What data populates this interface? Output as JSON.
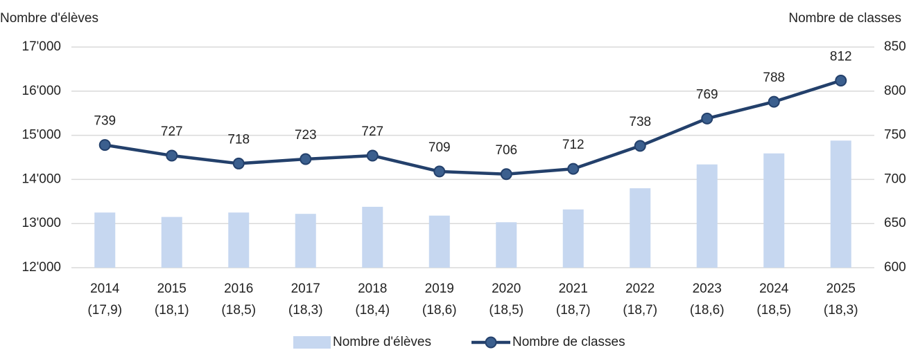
{
  "chart_data": {
    "type": "combo",
    "y_label": "Nombre d'élèves",
    "y2_label": "Nombre de classes",
    "categories": [
      "2014\n(17,9)",
      "2015\n(18,1)",
      "2016\n(18,5)",
      "2017\n(18,3)",
      "2018\n(18,4)",
      "2019\n(18,6)",
      "2020\n(18,5)",
      "2021\n(18,7)",
      "2022\n(18,7)",
      "2023\n(18,6)",
      "2024\n(18,5)",
      "2025\n(18,3)"
    ],
    "series": [
      {
        "name": "Nombre d'élèves",
        "type": "bar",
        "color": "#c6d7f0",
        "values": [
          13250,
          13150,
          13250,
          13220,
          13380,
          13180,
          13030,
          13320,
          13800,
          14340,
          14590,
          14880
        ]
      },
      {
        "name": "Nombre de classes",
        "type": "line",
        "axis": "y2",
        "color": "#23406b",
        "marker_color": "#3b5f8e",
        "values": [
          739,
          727,
          718,
          723,
          727,
          709,
          706,
          712,
          738,
          769,
          788,
          812
        ],
        "data_labels": true
      }
    ],
    "ylim": [
      12000,
      17000
    ],
    "yticks": [
      {
        "value": 12000,
        "label": "12'000"
      },
      {
        "value": 13000,
        "label": "13'000"
      },
      {
        "value": 14000,
        "label": "14'000"
      },
      {
        "value": 15000,
        "label": "15'000"
      },
      {
        "value": 16000,
        "label": "16'000"
      },
      {
        "value": 17000,
        "label": "17'000"
      }
    ],
    "y2lim": [
      600,
      850
    ],
    "y2ticks": [
      600,
      650,
      700,
      750,
      800,
      850
    ],
    "grid": true,
    "legend": "bottom"
  }
}
